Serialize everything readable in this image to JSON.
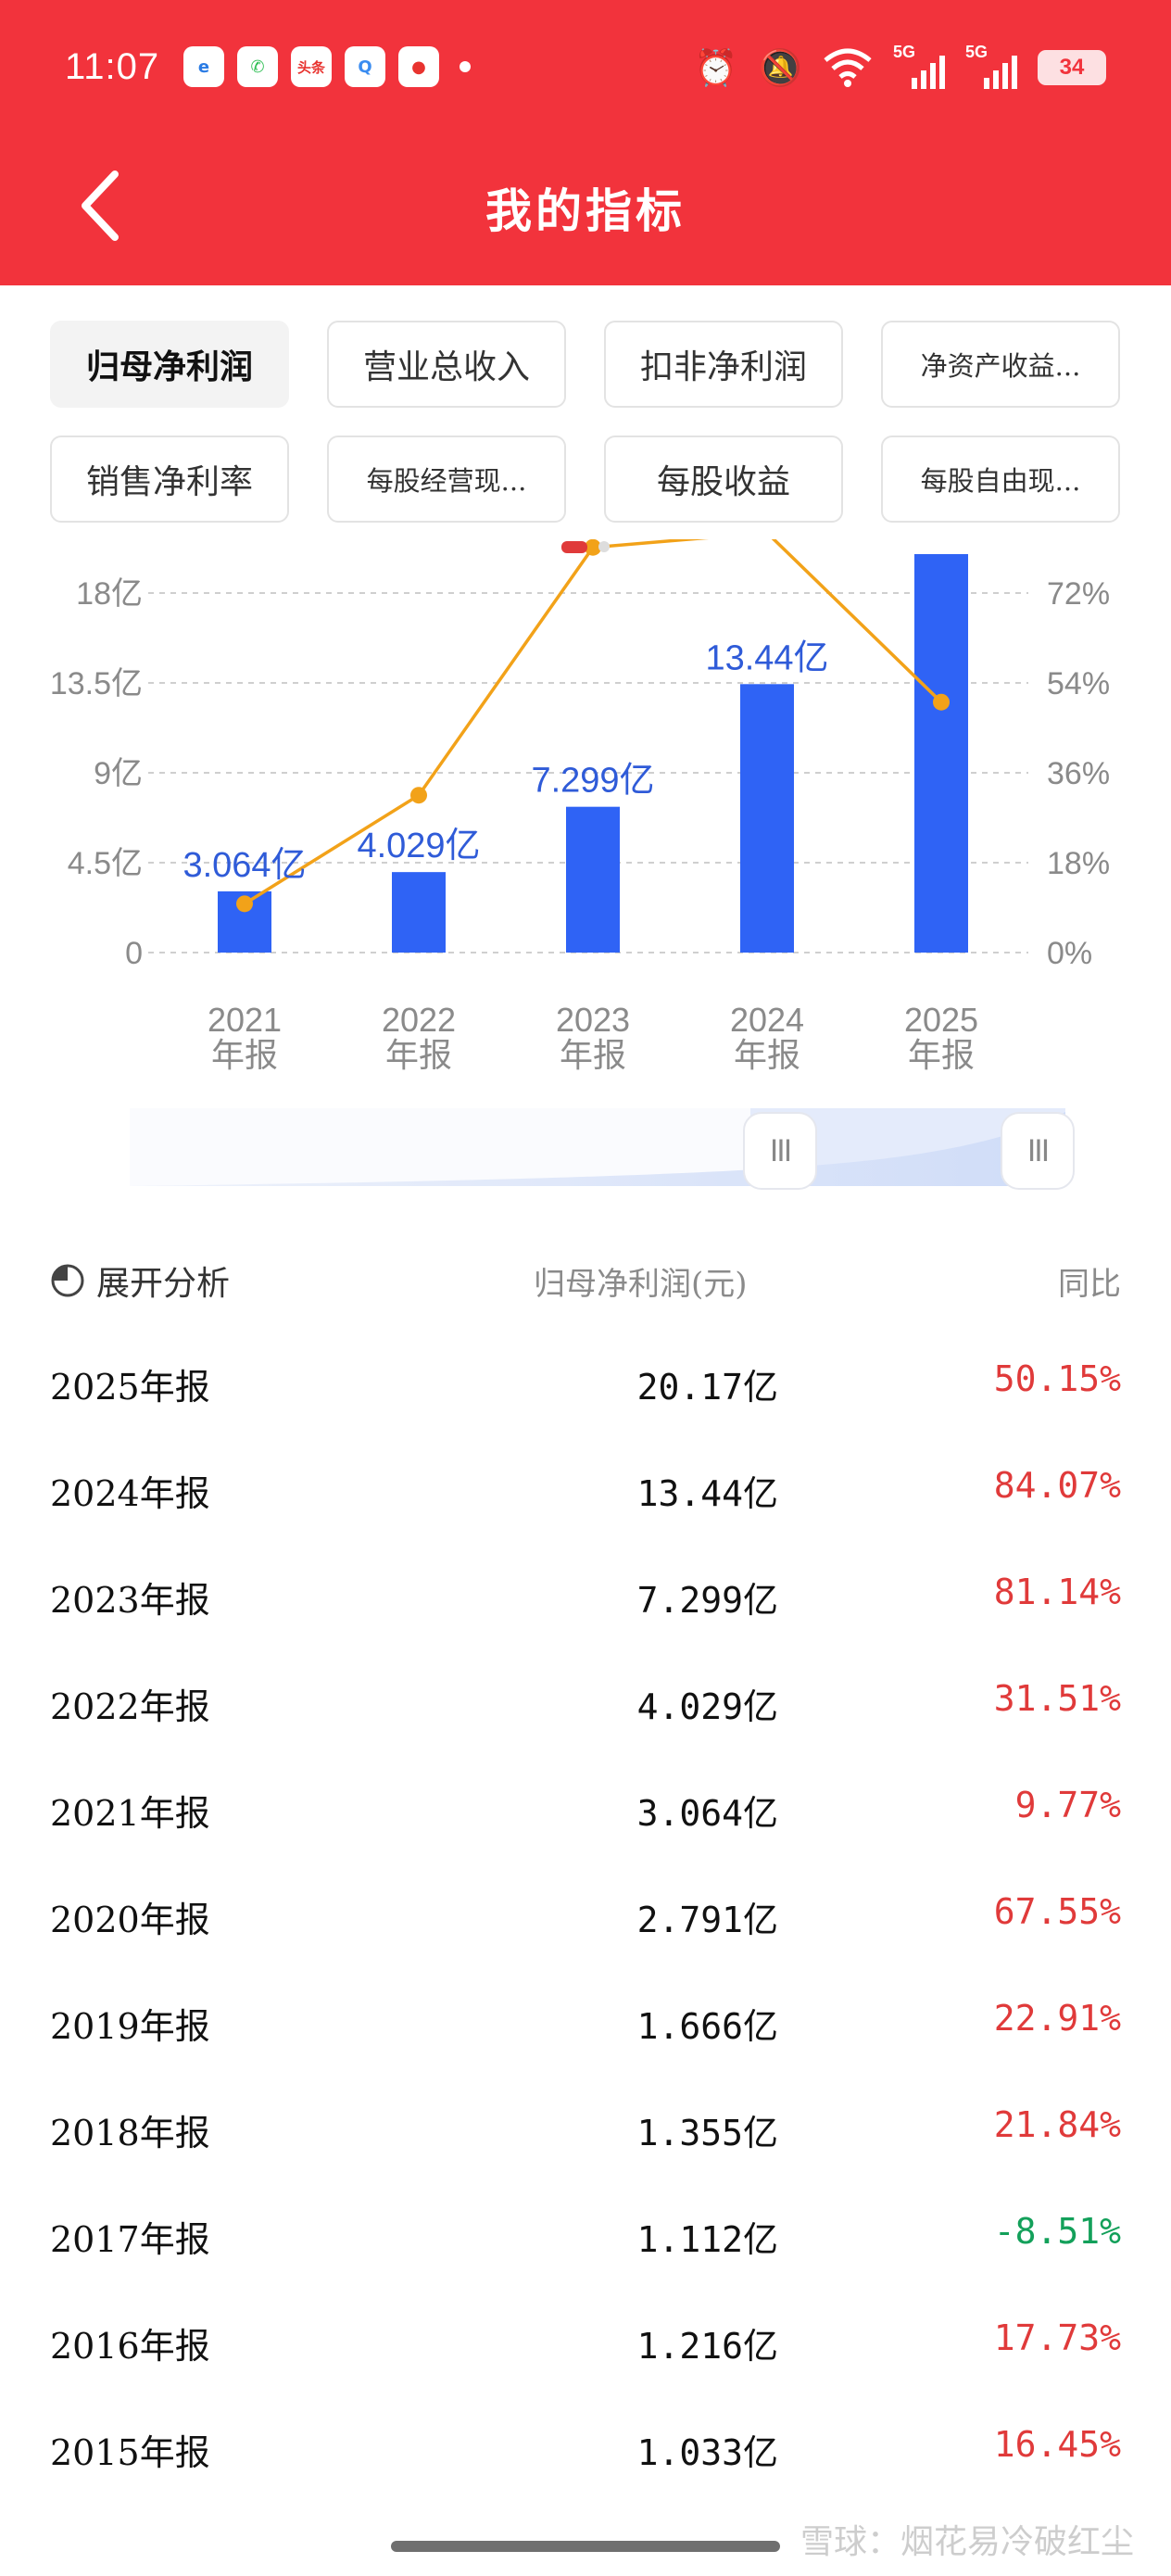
{
  "status_bar": {
    "time": "11:07",
    "apps": [
      {
        "icon": "browser-icon",
        "color": "#2a7be4",
        "glyph": "e"
      },
      {
        "icon": "phone-icon",
        "color": "#2fbf54",
        "glyph": "✆"
      },
      {
        "icon": "toutiao-icon",
        "color": "#e8332f",
        "glyph": "头条"
      },
      {
        "icon": "search-app-icon",
        "color": "#3a8cf0",
        "glyph": "Q"
      },
      {
        "icon": "video-app-icon",
        "color": "#e8332f",
        "glyph": "●"
      }
    ],
    "net1": "5G",
    "net2": "5G",
    "battery": "34"
  },
  "header": {
    "title": "我的指标"
  },
  "tabs": [
    {
      "label": "归母净利润",
      "active": true
    },
    {
      "label": "营业总收入",
      "active": false
    },
    {
      "label": "扣非净利润",
      "active": false
    },
    {
      "label": "净资产收益...",
      "active": false
    },
    {
      "label": "销售净利率",
      "active": false
    },
    {
      "label": "每股经营现...",
      "active": false
    },
    {
      "label": "每股收益",
      "active": false
    },
    {
      "label": "每股自由现...",
      "active": false
    }
  ],
  "colors": {
    "brand": "#f2333c",
    "bar": "#2f63f5",
    "line": "#f2a219",
    "up": "#e03a3a",
    "down": "#13a05a"
  },
  "chart_data": {
    "type": "bar",
    "categories": [
      [
        "2021",
        "年报"
      ],
      [
        "2022",
        "年报"
      ],
      [
        "2023",
        "年报"
      ],
      [
        "2024",
        "年报"
      ],
      [
        "2025",
        "年报"
      ]
    ],
    "series": [
      {
        "values": [
          3.064,
          4.029,
          7.299,
          13.44,
          20.17
        ],
        "labels": [
          "3.064亿",
          "4.029亿",
          "7.299亿",
          "13.44亿",
          ""
        ]
      },
      {
        "type": "line",
        "axis": "right",
        "values": [
          9.77,
          31.51,
          81.14,
          84.07,
          50.15
        ]
      }
    ],
    "y_left": {
      "range": [
        0,
        18
      ],
      "ticks": [
        "0",
        "4.5亿",
        "9亿",
        "13.5亿",
        "18亿"
      ],
      "tick_values": [
        0,
        4.5,
        9,
        13.5,
        18
      ]
    },
    "y_right": {
      "range": [
        0,
        72
      ],
      "ticks": [
        "0%",
        "18%",
        "36%",
        "54%",
        "72%"
      ],
      "tick_values": [
        0,
        18,
        36,
        54,
        72
      ]
    }
  },
  "slider": {
    "handle_glyph": "III"
  },
  "table": {
    "expand_label": "展开分析",
    "col_value": "归母净利润(元)",
    "col_yoy": "同比",
    "rows": [
      {
        "period": "2025年报",
        "value": "20.17亿",
        "yoy": "50.15%",
        "dir": "up"
      },
      {
        "period": "2024年报",
        "value": "13.44亿",
        "yoy": "84.07%",
        "dir": "up"
      },
      {
        "period": "2023年报",
        "value": "7.299亿",
        "yoy": "81.14%",
        "dir": "up"
      },
      {
        "period": "2022年报",
        "value": "4.029亿",
        "yoy": "31.51%",
        "dir": "up"
      },
      {
        "period": "2021年报",
        "value": "3.064亿",
        "yoy": "9.77%",
        "dir": "up"
      },
      {
        "period": "2020年报",
        "value": "2.791亿",
        "yoy": "67.55%",
        "dir": "up"
      },
      {
        "period": "2019年报",
        "value": "1.666亿",
        "yoy": "22.91%",
        "dir": "up"
      },
      {
        "period": "2018年报",
        "value": "1.355亿",
        "yoy": "21.84%",
        "dir": "up"
      },
      {
        "period": "2017年报",
        "value": "1.112亿",
        "yoy": "-8.51%",
        "dir": "down"
      },
      {
        "period": "2016年报",
        "value": "1.216亿",
        "yoy": "17.73%",
        "dir": "up"
      },
      {
        "period": "2015年报",
        "value": "1.033亿",
        "yoy": "16.45%",
        "dir": "up"
      }
    ]
  },
  "watermark": "雪球：烟花易冷破红尘"
}
